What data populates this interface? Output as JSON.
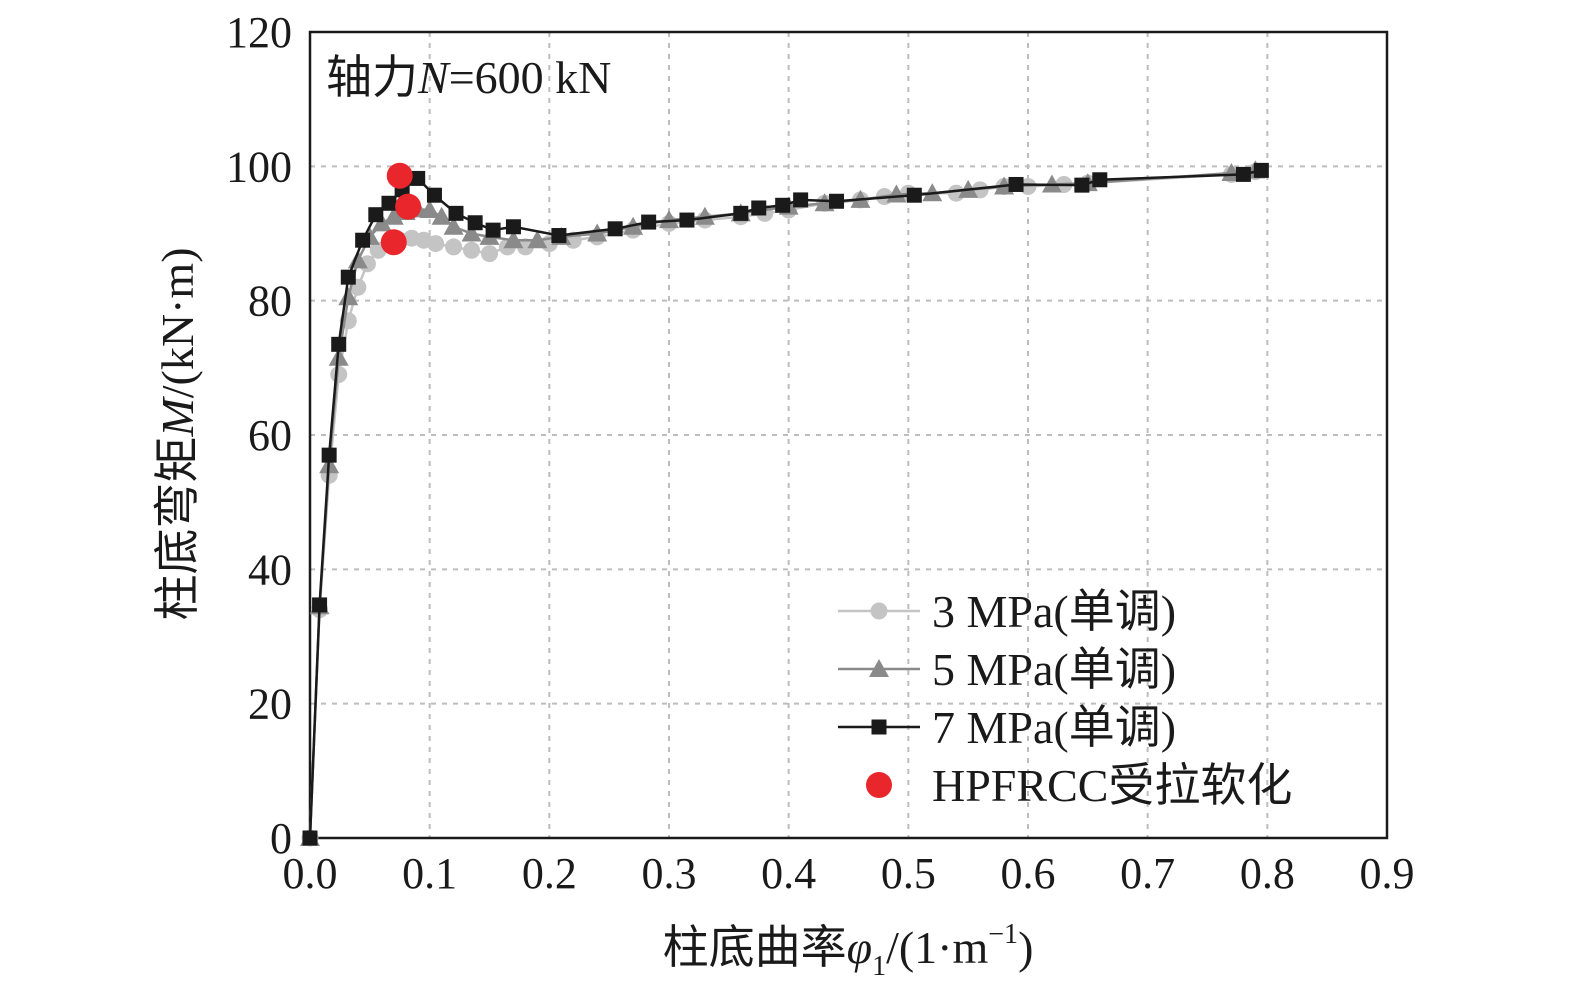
{
  "chart_data": {
    "type": "line",
    "title": "",
    "annotation": {
      "prefix": "轴力",
      "var": "N",
      "rest": "=600 kN"
    },
    "xlabel": {
      "text": "柱底曲率",
      "var": "φ",
      "sub": "1",
      "unit_open": "/(1·m",
      "sup": "−1",
      "unit_close": ")"
    },
    "ylabel": {
      "text": "柱底弯矩",
      "var": "M",
      "unit": "/(kN·m)"
    },
    "xlim": [
      0,
      0.9
    ],
    "ylim": [
      0,
      120
    ],
    "xticks": [
      0,
      0.1,
      0.2,
      0.3,
      0.4,
      0.5,
      0.6,
      0.7,
      0.8,
      0.9
    ],
    "xtick_labels": [
      "0.0",
      "0.1",
      "0.2",
      "0.3",
      "0.4",
      "0.5",
      "0.6",
      "0.7",
      "0.8",
      "0.9"
    ],
    "yticks": [
      0,
      20,
      40,
      60,
      80,
      100,
      120
    ],
    "ytick_labels": [
      "0",
      "20",
      "40",
      "60",
      "80",
      "100",
      "120"
    ],
    "grid": true,
    "legend_position": "lower-right",
    "series": [
      {
        "name": "3 MPa(单调)",
        "color": "#c4c4c4",
        "marker": "circle",
        "x": [
          0,
          0.008,
          0.016,
          0.024,
          0.032,
          0.04,
          0.048,
          0.057,
          0.066,
          0.075,
          0.085,
          0.095,
          0.105,
          0.12,
          0.135,
          0.15,
          0.165,
          0.18,
          0.2,
          0.22,
          0.24,
          0.27,
          0.3,
          0.33,
          0.36,
          0.38,
          0.4,
          0.43,
          0.46,
          0.48,
          0.5,
          0.54,
          0.56,
          0.58,
          0.6,
          0.63,
          0.65,
          0.77,
          0.79
        ],
        "y": [
          0,
          34,
          54,
          69,
          77,
          82,
          85.5,
          87.5,
          88.5,
          89,
          89.3,
          89,
          88.5,
          88,
          87.5,
          87,
          88,
          88,
          88.5,
          89,
          89.5,
          90.5,
          91.5,
          92,
          92.5,
          93,
          93.5,
          94.5,
          95,
          95.5,
          96,
          96,
          96.5,
          97,
          97,
          97.3,
          97.5,
          98.8,
          99.2
        ]
      },
      {
        "name": "5 MPa(单调)",
        "color": "#8a8a8a",
        "marker": "triangle",
        "x": [
          0,
          0.008,
          0.016,
          0.024,
          0.032,
          0.04,
          0.05,
          0.06,
          0.07,
          0.08,
          0.09,
          0.1,
          0.11,
          0.12,
          0.135,
          0.15,
          0.17,
          0.19,
          0.21,
          0.24,
          0.27,
          0.3,
          0.33,
          0.36,
          0.4,
          0.43,
          0.46,
          0.49,
          0.52,
          0.55,
          0.58,
          0.62,
          0.65,
          0.77,
          0.79
        ],
        "y": [
          0,
          34.5,
          55.5,
          71.5,
          80.5,
          86,
          89.5,
          91.5,
          92.5,
          93.2,
          93.6,
          93.5,
          92.5,
          91,
          90,
          89.5,
          89,
          89,
          89.5,
          90,
          91,
          92,
          92.5,
          93,
          94,
          94.5,
          95,
          95.8,
          96,
          96.5,
          97,
          97.3,
          97.5,
          99,
          99.4
        ]
      },
      {
        "name": "7 MPa(单调)",
        "color": "#1a1a1a",
        "marker": "square",
        "x": [
          0,
          0.008,
          0.016,
          0.024,
          0.032,
          0.044,
          0.055,
          0.066,
          0.077,
          0.09,
          0.104,
          0.122,
          0.138,
          0.153,
          0.17,
          0.208,
          0.255,
          0.283,
          0.315,
          0.36,
          0.375,
          0.395,
          0.41,
          0.44,
          0.505,
          0.59,
          0.645,
          0.66,
          0.78,
          0.795
        ],
        "y": [
          0,
          34.7,
          57,
          73.5,
          83.5,
          89,
          92.8,
          94.5,
          96.5,
          98.2,
          95.7,
          93,
          91.6,
          90.5,
          91,
          89.7,
          90.7,
          91.7,
          92,
          93,
          93.8,
          94.2,
          95,
          94.8,
          95.7,
          97.3,
          97.2,
          98,
          98.8,
          99.4
        ]
      }
    ],
    "softening_points": {
      "name": "HPFRCC受拉软化",
      "color": "#e8262b",
      "x": [
        0.07,
        0.082,
        0.075
      ],
      "y": [
        88.7,
        94,
        98.6
      ]
    }
  }
}
